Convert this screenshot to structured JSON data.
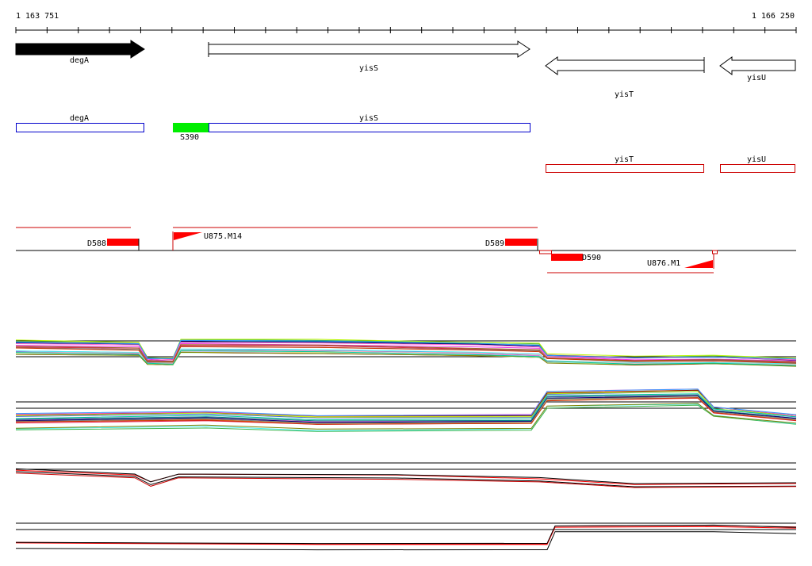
{
  "ruler": {
    "start_label": "1 163 751",
    "end_label": "1 166 250"
  },
  "genes": [
    {
      "name": "degA",
      "strand": "+",
      "filled": true
    },
    {
      "name": "yisS",
      "strand": "+",
      "filled": false
    },
    {
      "name": "yisT",
      "strand": "-",
      "filled": false
    },
    {
      "name": "yisU",
      "strand": "-",
      "filled": false
    }
  ],
  "transcripts_forward": [
    {
      "name": "degA"
    },
    {
      "name": "yisS"
    }
  ],
  "promoter_label": "S390",
  "transcripts_reverse": [
    {
      "name": "yisT"
    },
    {
      "name": "yisU"
    }
  ],
  "features": [
    {
      "name": "D588"
    },
    {
      "name": "U875.M14"
    },
    {
      "name": "D589"
    },
    {
      "name": "D590"
    },
    {
      "name": "U876.M1"
    }
  ],
  "colors": {
    "forward_outline": "#0000cc",
    "reverse_outline": "#cc0000",
    "promoter_fill": "#00ee00",
    "feature_fill": "#ff0000"
  }
}
